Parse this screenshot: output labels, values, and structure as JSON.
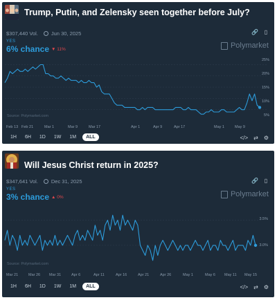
{
  "markets": [
    {
      "title": "Trump, Putin, and Zelensky seen together before July?",
      "volume": "$307,440 Vol.",
      "end_date": "Jun 30, 2025",
      "outcome_label": "YES",
      "chance_text": "6% chance",
      "change_text": "▼ 11%",
      "brand": "Polymarket",
      "source": "Source: Polymarket.com",
      "x_ticks": [
        "Feb 13",
        "Feb 21",
        "Mar 1",
        "Mar 9",
        "Mar 17",
        "Apr 1",
        "Apr 9",
        "Apr 17",
        "May 1",
        "May 9"
      ],
      "y_ticks": [
        "25%",
        "20%",
        "15%",
        "10%",
        "5%"
      ],
      "ranges": [
        "1H",
        "6H",
        "1D",
        "1W",
        "1M",
        "ALL"
      ],
      "active_range": "ALL"
    },
    {
      "title": "Will Jesus Christ return in 2025?",
      "volume": "$347,641 Vol.",
      "end_date": "Dec 31, 2025",
      "outcome_label": "YES",
      "chance_text": "3% chance",
      "change_text": "▲ 0%",
      "brand": "Polymarket",
      "source": "Source: Polymarket.com",
      "x_ticks": [
        "Mar 21",
        "Mar 26",
        "Mar 31",
        "Apr 6",
        "Apr 11",
        "Apr 16",
        "Apr 21",
        "Apr 26",
        "May 1",
        "May 6",
        "May 11",
        "May 15"
      ],
      "y_ticks": [
        "3.5%",
        "3.0%"
      ],
      "ranges": [
        "1H",
        "6H",
        "1D",
        "1W",
        "1M",
        "ALL"
      ],
      "active_range": "ALL"
    }
  ],
  "chart_data": [
    {
      "type": "line",
      "ylim": [
        0,
        27
      ],
      "x": [
        0,
        2,
        4,
        6,
        8,
        10,
        12,
        14,
        16,
        18,
        20,
        22,
        24,
        26,
        28,
        30,
        32,
        34,
        36,
        38,
        40,
        42,
        44,
        46,
        48,
        50,
        52,
        54,
        56,
        58,
        60,
        62,
        64,
        66,
        68,
        70,
        72,
        74,
        76,
        78,
        80,
        82,
        84,
        86,
        88,
        90,
        92,
        94,
        96,
        98,
        100,
        102,
        104,
        106,
        108,
        110,
        112,
        114,
        116,
        118,
        120,
        122,
        124,
        126,
        128,
        130,
        132,
        134,
        136,
        138,
        140,
        142,
        144,
        146,
        148,
        150,
        152,
        154,
        156,
        158,
        160,
        162,
        164,
        166,
        168,
        170,
        172,
        174,
        176,
        178,
        180,
        182,
        184,
        186,
        188,
        190,
        192,
        194,
        196,
        198,
        200
      ],
      "values": [
        17,
        19,
        22,
        21,
        22,
        23,
        22,
        22,
        23,
        22,
        23,
        24,
        23,
        24,
        25,
        25,
        21,
        21,
        20,
        20,
        19,
        19,
        20,
        19,
        18,
        19,
        18,
        18,
        18,
        17,
        18,
        17,
        17,
        18,
        17,
        17,
        15,
        16,
        13,
        12,
        12,
        12,
        10,
        8,
        7,
        7,
        7,
        6,
        6,
        6,
        6,
        6,
        5,
        5,
        6,
        5,
        6,
        6,
        6,
        5,
        5,
        5,
        5,
        5,
        5,
        5,
        5,
        6,
        6,
        6,
        5,
        5,
        6,
        5,
        5,
        5,
        4,
        3,
        3,
        4,
        4,
        5,
        4,
        4,
        4,
        5,
        5,
        4,
        4,
        4,
        4,
        5,
        6,
        5,
        5,
        8,
        12,
        9,
        12,
        7,
        6
      ],
      "series": [
        {
          "name": "Yes",
          "color": "#2d9cdb"
        }
      ]
    },
    {
      "type": "line",
      "ylim": [
        2.6,
        3.7
      ],
      "x": [
        0,
        1,
        2,
        3,
        4,
        5,
        6,
        7,
        8,
        9,
        10,
        11,
        12,
        13,
        14,
        15,
        16,
        17,
        18,
        19,
        20,
        21,
        22,
        23,
        24,
        25,
        26,
        27,
        28,
        29,
        30,
        31,
        32,
        33,
        34,
        35,
        36,
        37,
        38,
        39,
        40,
        41,
        42,
        43,
        44,
        45,
        46,
        47,
        48,
        49,
        50,
        51,
        52,
        53,
        54,
        55,
        56,
        57,
        58,
        59,
        60,
        61,
        62,
        63,
        64,
        65,
        66,
        67,
        68,
        69,
        70,
        71,
        72,
        73,
        74,
        75,
        76,
        77,
        78,
        79,
        80,
        81,
        82,
        83,
        84,
        85,
        86,
        87,
        88,
        89,
        90,
        91,
        92,
        93,
        94,
        95,
        96,
        97,
        98,
        99,
        100
      ],
      "values": [
        3.1,
        3.3,
        3.0,
        3.2,
        3.1,
        2.9,
        3.2,
        3.0,
        3.1,
        3.0,
        3.2,
        3.1,
        3.0,
        3.1,
        3.2,
        2.9,
        3.1,
        3.0,
        3.1,
        3.0,
        3.2,
        3.0,
        3.1,
        3.0,
        3.1,
        3.2,
        3.1,
        3.0,
        3.2,
        3.3,
        3.1,
        3.2,
        3.1,
        3.3,
        3.2,
        3.1,
        3.4,
        3.2,
        3.3,
        3.1,
        3.4,
        3.5,
        3.3,
        3.6,
        3.4,
        3.5,
        3.3,
        3.6,
        3.4,
        3.5,
        3.4,
        3.3,
        3.5,
        3.4,
        3.0,
        2.9,
        2.8,
        3.0,
        2.9,
        2.7,
        3.0,
        2.8,
        3.0,
        3.1,
        3.0,
        2.9,
        3.0,
        3.1,
        3.0,
        2.9,
        3.0,
        2.9,
        3.0,
        3.0,
        2.9,
        3.0,
        3.1,
        3.0,
        3.0,
        2.9,
        3.0,
        3.1,
        2.9,
        3.0,
        3.0,
        2.9,
        3.1,
        3.0,
        3.0,
        2.9,
        3.0,
        3.1,
        2.9,
        3.0,
        3.0,
        3.0,
        2.9,
        3.1,
        3.0,
        3.2,
        3.0
      ],
      "series": [
        {
          "name": "Yes",
          "color": "#2d9cdb"
        }
      ]
    }
  ]
}
